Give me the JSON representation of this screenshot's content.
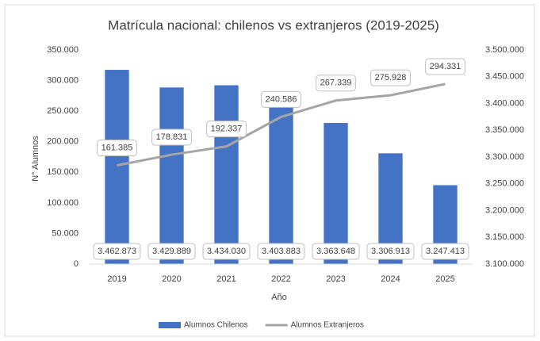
{
  "chart_data": {
    "type": "bar_line",
    "title": "Matrícula nacional: chilenos vs extranjeros (2019-2025)",
    "x_label": "Año",
    "y_label": "N° Alumnos",
    "categories": [
      "2019",
      "2020",
      "2021",
      "2022",
      "2023",
      "2024",
      "2025"
    ],
    "series": [
      {
        "name": "Alumnos Chilenos",
        "type": "bar",
        "axis": "y2",
        "color": "#4472c4",
        "values": [
          3462873,
          3429889,
          3434030,
          3403883,
          3363648,
          3306913,
          3247413
        ],
        "value_labels": [
          "3.462.873",
          "3.429.889",
          "3.434.030",
          "3.403.883",
          "3.363.648",
          "3.306.913",
          "3.247.413"
        ]
      },
      {
        "name": "Alumnos Extranjeros",
        "type": "line",
        "axis": "y",
        "color": "#a5a5a5",
        "values": [
          161385,
          178831,
          192337,
          240586,
          267339,
          275928,
          294331
        ],
        "value_labels": [
          "161.385",
          "178.831",
          "192.337",
          "240.586",
          "267.339",
          "275.928",
          "294.331"
        ]
      }
    ],
    "ylim": [
      0,
      350000
    ],
    "yticks": [
      0,
      {
        "value": 50000,
        "label": "50.000"
      },
      {
        "value": 100000,
        "label": "100.000"
      },
      {
        "value": 150000,
        "label": "150.000"
      },
      {
        "value": 200000,
        "label": "200.000"
      },
      {
        "value": 250000,
        "label": "250.000"
      },
      {
        "value": 300000,
        "label": "300.000"
      },
      {
        "value": 350000,
        "label": "350.000"
      }
    ],
    "y2lim": [
      3100000,
      3500000
    ],
    "y2ticks": [
      {
        "value": 3100000,
        "label": "3.100.000"
      },
      {
        "value": 3150000,
        "label": "3.150.000"
      },
      {
        "value": 3200000,
        "label": "3.200.000"
      },
      {
        "value": 3250000,
        "label": "3.250.000"
      },
      {
        "value": 3300000,
        "label": "3.300.000"
      },
      {
        "value": 3350000,
        "label": "3.350.000"
      },
      {
        "value": 3400000,
        "label": "3.400.000"
      },
      {
        "value": 3450000,
        "label": "3.450.000"
      },
      {
        "value": 3500000,
        "label": "3.500.000"
      }
    ],
    "legend": "bottom"
  }
}
